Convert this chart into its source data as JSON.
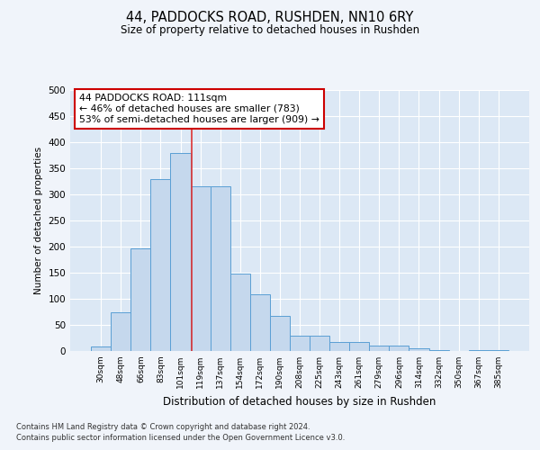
{
  "title": "44, PADDOCKS ROAD, RUSHDEN, NN10 6RY",
  "subtitle": "Size of property relative to detached houses in Rushden",
  "xlabel": "Distribution of detached houses by size in Rushden",
  "ylabel": "Number of detached properties",
  "categories": [
    "30sqm",
    "48sqm",
    "66sqm",
    "83sqm",
    "101sqm",
    "119sqm",
    "137sqm",
    "154sqm",
    "172sqm",
    "190sqm",
    "208sqm",
    "225sqm",
    "243sqm",
    "261sqm",
    "279sqm",
    "296sqm",
    "314sqm",
    "332sqm",
    "350sqm",
    "367sqm",
    "385sqm"
  ],
  "values": [
    8,
    75,
    196,
    330,
    379,
    316,
    315,
    148,
    108,
    68,
    30,
    30,
    18,
    18,
    11,
    11,
    6,
    2,
    0,
    1,
    1
  ],
  "bar_color": "#c5d8ed",
  "bar_edge_color": "#5a9fd4",
  "background_color": "#dce8f5",
  "grid_color": "#ffffff",
  "vline_color": "#dd3333",
  "annotation_box_text": "44 PADDOCKS ROAD: 111sqm\n← 46% of detached houses are smaller (783)\n53% of semi-detached houses are larger (909) →",
  "annotation_box_color": "#ffffff",
  "annotation_box_edge_color": "#cc0000",
  "footnote1": "Contains HM Land Registry data © Crown copyright and database right 2024.",
  "footnote2": "Contains public sector information licensed under the Open Government Licence v3.0.",
  "fig_bg": "#f0f4fa",
  "ylim": [
    0,
    500
  ],
  "yticks": [
    0,
    50,
    100,
    150,
    200,
    250,
    300,
    350,
    400,
    450,
    500
  ]
}
